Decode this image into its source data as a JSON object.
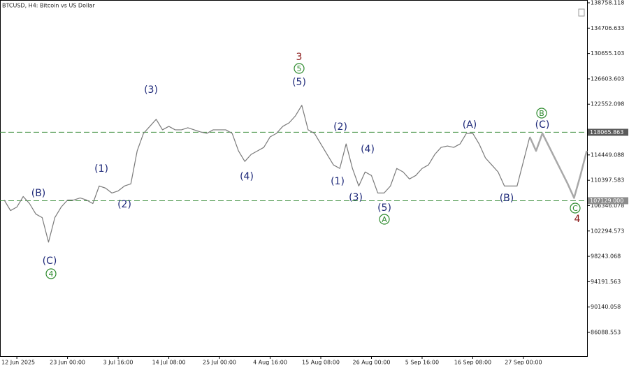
{
  "chart_data": {
    "type": "line",
    "title": "BTCUSD, H4:  Bitcoin vs US Dollar",
    "categories": [
      null,
      null,
      "12 Jun 2025",
      null,
      null,
      null,
      null,
      null,
      null,
      null,
      "23 Jun 00:00",
      null,
      null,
      null,
      null,
      null,
      null,
      null,
      "3 Jul 16:00",
      null,
      null,
      null,
      null,
      null,
      null,
      null,
      "14 Jul 08:00",
      null,
      null,
      null,
      null,
      null,
      null,
      null,
      "25 Jul 00:00",
      null,
      null,
      null,
      null,
      null,
      null,
      null,
      "4 Aug 16:00",
      null,
      null,
      null,
      null,
      null,
      null,
      null,
      "15 Aug 08:00",
      null,
      null,
      null,
      null,
      null,
      null,
      null,
      "26 Aug 00:00",
      null,
      null,
      null,
      null,
      null,
      null,
      null,
      "5 Sep 16:00",
      null,
      null,
      null,
      null,
      null,
      null,
      null,
      "16 Sep 08:00",
      null,
      null,
      null,
      null,
      null,
      null,
      null,
      "27 Sep 00:00",
      null,
      null,
      null,
      null,
      null,
      null,
      null,
      null,
      null,
      null
    ],
    "series": [
      {
        "color": "#7a7a7a",
        "width": 1.2,
        "values": [
          107238,
          105556,
          106117,
          107799,
          106677,
          104995,
          104434,
          100508,
          104434,
          106117,
          107238,
          107238,
          107575,
          107238,
          106677,
          109482,
          109145,
          108360,
          108697,
          109482,
          109818,
          115090,
          117894,
          119016,
          120138,
          118455,
          119016,
          118455,
          118455,
          118792,
          118455,
          118119,
          117894,
          118455,
          118455,
          118455,
          117894,
          115090,
          113408,
          114529,
          115090,
          115651,
          117334,
          117894,
          119016,
          119577,
          120699,
          122381,
          118455,
          117894,
          116212,
          114529,
          112847,
          112286,
          116212,
          112286,
          109482,
          111724,
          111163,
          108360,
          108360,
          109482,
          112286,
          111724,
          110603,
          111163,
          112286,
          112847,
          114529,
          115651,
          115875,
          115651,
          116212,
          117894,
          117894,
          116212,
          113968,
          112847,
          111724,
          109482,
          109482,
          109482,
          113408,
          117334,
          null,
          null,
          null,
          null,
          null,
          null,
          null,
          null,
          null
        ]
      },
      {
        "color": "#a8a8a8",
        "width": 2.5,
        "values": [
          null,
          null,
          null,
          null,
          null,
          null,
          null,
          null,
          null,
          null,
          null,
          null,
          null,
          null,
          null,
          null,
          null,
          null,
          null,
          null,
          null,
          null,
          null,
          null,
          null,
          null,
          null,
          null,
          null,
          null,
          null,
          null,
          null,
          null,
          null,
          null,
          null,
          null,
          null,
          null,
          null,
          null,
          null,
          null,
          null,
          null,
          null,
          null,
          null,
          null,
          null,
          null,
          null,
          null,
          null,
          null,
          null,
          null,
          null,
          null,
          null,
          null,
          null,
          null,
          null,
          null,
          null,
          null,
          null,
          null,
          null,
          null,
          null,
          null,
          null,
          null,
          null,
          null,
          null,
          null,
          null,
          null,
          null,
          117334,
          115090,
          117894,
          115875,
          113857,
          111837,
          109818,
          107575,
          111163,
          115090
        ]
      }
    ],
    "ylim": [
      82295,
      139204
    ],
    "yticks": [
      138758.118,
      134706.633,
      130655.103,
      126603.603,
      122552.098,
      114449.088,
      110397.583,
      106346.078,
      102294.573,
      98243.068,
      94191.563,
      90140.058,
      86088.553
    ],
    "hlines": [
      118065.863,
      {
        "value": 107129.0,
        "label": "107129.000"
      }
    ],
    "hline_color": "#3f8f3f",
    "annotations": [
      {
        "text": "(B)",
        "color": "#1f2a7a"
      },
      {
        "text": "(C)",
        "color": "#1f2a7a"
      },
      {
        "text": "4",
        "color": "#2e8b2e",
        "circled": true
      },
      {
        "text": "(1)",
        "color": "#1f2a7a"
      },
      {
        "text": "(2)",
        "color": "#1f2a7a"
      },
      {
        "text": "(3)",
        "color": "#1f2a7a"
      },
      {
        "text": "3",
        "color": "#8b1a1a"
      },
      {
        "text": "5",
        "color": "#2e8b2e",
        "circled": true
      },
      {
        "text": "(5)",
        "color": "#1f2a7a"
      },
      {
        "text": "(4)",
        "color": "#1f2a7a"
      },
      {
        "text": "(2)",
        "color": "#1f2a7a"
      },
      {
        "text": "(4)",
        "color": "#1f2a7a"
      },
      {
        "text": "(1)",
        "color": "#1f2a7a"
      },
      {
        "text": "(3)",
        "color": "#1f2a7a"
      },
      {
        "text": "(5)",
        "color": "#1f2a7a"
      },
      {
        "text": "A",
        "color": "#2e8b2e",
        "circled": true
      },
      {
        "text": "(A)",
        "color": "#1f2a7a"
      },
      {
        "text": "(B)",
        "color": "#1f2a7a"
      },
      {
        "text": "B",
        "color": "#2e8b2e",
        "circled": true
      },
      {
        "text": "(C)",
        "color": "#1f2a7a"
      },
      {
        "text": "C",
        "color": "#2e8b2e",
        "circled": true
      },
      {
        "text": "4",
        "color": "#8b1a1a"
      }
    ]
  }
}
